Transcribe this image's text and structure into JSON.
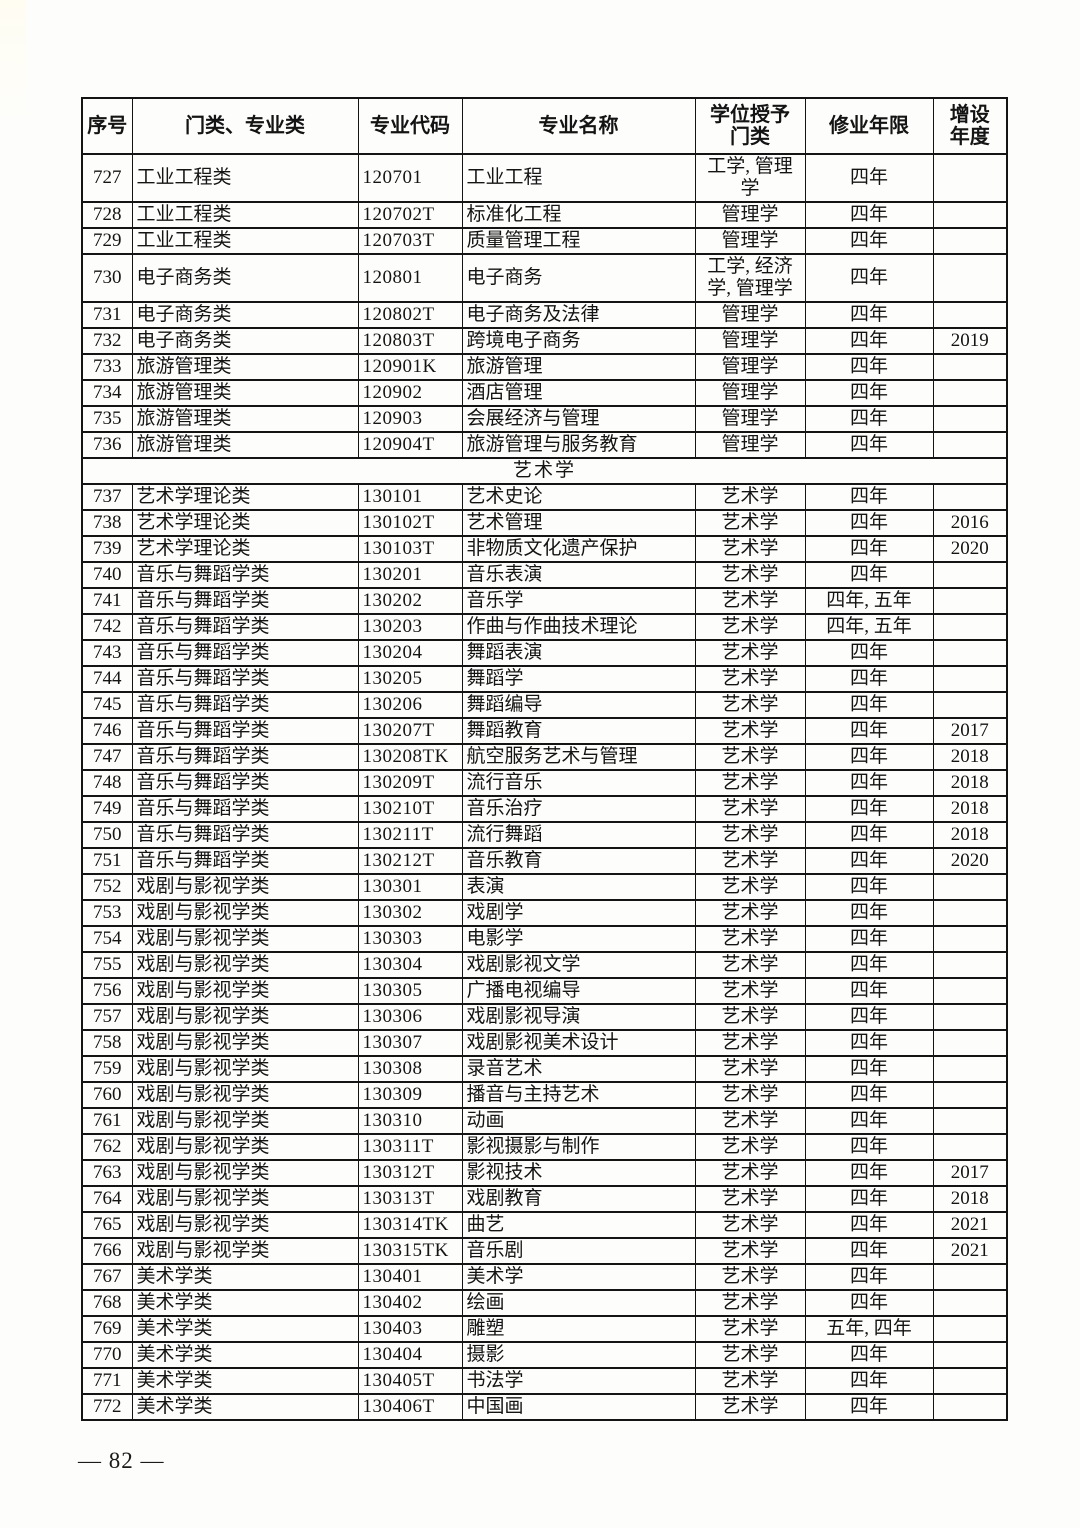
{
  "document": {
    "table": {
      "columns": [
        "序号",
        "门类、专业类",
        "专业代码",
        "专业名称",
        "学位授予\n门类",
        "修业年限",
        "增设\n年度"
      ],
      "rows": [
        {
          "cells": [
            "727",
            "工业工程类",
            "120701",
            "工业工程",
            "工学, 管理学",
            "四年",
            ""
          ]
        },
        {
          "cells": [
            "728",
            "工业工程类",
            "120702T",
            "标准化工程",
            "管理学",
            "四年",
            ""
          ]
        },
        {
          "cells": [
            "729",
            "工业工程类",
            "120703T",
            "质量管理工程",
            "管理学",
            "四年",
            ""
          ]
        },
        {
          "cells": [
            "730",
            "电子商务类",
            "120801",
            "电子商务",
            "工学, 经济学, 管理学",
            "四年",
            ""
          ]
        },
        {
          "cells": [
            "731",
            "电子商务类",
            "120802T",
            "电子商务及法律",
            "管理学",
            "四年",
            ""
          ]
        },
        {
          "cells": [
            "732",
            "电子商务类",
            "120803T",
            "跨境电子商务",
            "管理学",
            "四年",
            "2019"
          ]
        },
        {
          "cells": [
            "733",
            "旅游管理类",
            "120901K",
            "旅游管理",
            "管理学",
            "四年",
            ""
          ]
        },
        {
          "cells": [
            "734",
            "旅游管理类",
            "120902",
            "酒店管理",
            "管理学",
            "四年",
            ""
          ]
        },
        {
          "cells": [
            "735",
            "旅游管理类",
            "120903",
            "会展经济与管理",
            "管理学",
            "四年",
            ""
          ]
        },
        {
          "cells": [
            "736",
            "旅游管理类",
            "120904T",
            "旅游管理与服务教育",
            "管理学",
            "四年",
            ""
          ]
        },
        {
          "section": "艺术学"
        },
        {
          "cells": [
            "737",
            "艺术学理论类",
            "130101",
            "艺术史论",
            "艺术学",
            "四年",
            ""
          ]
        },
        {
          "cells": [
            "738",
            "艺术学理论类",
            "130102T",
            "艺术管理",
            "艺术学",
            "四年",
            "2016"
          ]
        },
        {
          "cells": [
            "739",
            "艺术学理论类",
            "130103T",
            "非物质文化遗产保护",
            "艺术学",
            "四年",
            "2020"
          ]
        },
        {
          "cells": [
            "740",
            "音乐与舞蹈学类",
            "130201",
            "音乐表演",
            "艺术学",
            "四年",
            ""
          ]
        },
        {
          "cells": [
            "741",
            "音乐与舞蹈学类",
            "130202",
            "音乐学",
            "艺术学",
            "四年, 五年",
            ""
          ]
        },
        {
          "cells": [
            "742",
            "音乐与舞蹈学类",
            "130203",
            "作曲与作曲技术理论",
            "艺术学",
            "四年, 五年",
            ""
          ]
        },
        {
          "cells": [
            "743",
            "音乐与舞蹈学类",
            "130204",
            "舞蹈表演",
            "艺术学",
            "四年",
            ""
          ]
        },
        {
          "cells": [
            "744",
            "音乐与舞蹈学类",
            "130205",
            "舞蹈学",
            "艺术学",
            "四年",
            ""
          ]
        },
        {
          "cells": [
            "745",
            "音乐与舞蹈学类",
            "130206",
            "舞蹈编导",
            "艺术学",
            "四年",
            ""
          ]
        },
        {
          "cells": [
            "746",
            "音乐与舞蹈学类",
            "130207T",
            "舞蹈教育",
            "艺术学",
            "四年",
            "2017"
          ]
        },
        {
          "cells": [
            "747",
            "音乐与舞蹈学类",
            "130208TK",
            "航空服务艺术与管理",
            "艺术学",
            "四年",
            "2018"
          ]
        },
        {
          "cells": [
            "748",
            "音乐与舞蹈学类",
            "130209T",
            "流行音乐",
            "艺术学",
            "四年",
            "2018"
          ]
        },
        {
          "cells": [
            "749",
            "音乐与舞蹈学类",
            "130210T",
            "音乐治疗",
            "艺术学",
            "四年",
            "2018"
          ]
        },
        {
          "cells": [
            "750",
            "音乐与舞蹈学类",
            "130211T",
            "流行舞蹈",
            "艺术学",
            "四年",
            "2018"
          ]
        },
        {
          "cells": [
            "751",
            "音乐与舞蹈学类",
            "130212T",
            "音乐教育",
            "艺术学",
            "四年",
            "2020"
          ]
        },
        {
          "cells": [
            "752",
            "戏剧与影视学类",
            "130301",
            "表演",
            "艺术学",
            "四年",
            ""
          ]
        },
        {
          "cells": [
            "753",
            "戏剧与影视学类",
            "130302",
            "戏剧学",
            "艺术学",
            "四年",
            ""
          ]
        },
        {
          "cells": [
            "754",
            "戏剧与影视学类",
            "130303",
            "电影学",
            "艺术学",
            "四年",
            ""
          ]
        },
        {
          "cells": [
            "755",
            "戏剧与影视学类",
            "130304",
            "戏剧影视文学",
            "艺术学",
            "四年",
            ""
          ]
        },
        {
          "cells": [
            "756",
            "戏剧与影视学类",
            "130305",
            "广播电视编导",
            "艺术学",
            "四年",
            ""
          ]
        },
        {
          "cells": [
            "757",
            "戏剧与影视学类",
            "130306",
            "戏剧影视导演",
            "艺术学",
            "四年",
            ""
          ]
        },
        {
          "cells": [
            "758",
            "戏剧与影视学类",
            "130307",
            "戏剧影视美术设计",
            "艺术学",
            "四年",
            ""
          ]
        },
        {
          "cells": [
            "759",
            "戏剧与影视学类",
            "130308",
            "录音艺术",
            "艺术学",
            "四年",
            ""
          ]
        },
        {
          "cells": [
            "760",
            "戏剧与影视学类",
            "130309",
            "播音与主持艺术",
            "艺术学",
            "四年",
            ""
          ]
        },
        {
          "cells": [
            "761",
            "戏剧与影视学类",
            "130310",
            "动画",
            "艺术学",
            "四年",
            ""
          ]
        },
        {
          "cells": [
            "762",
            "戏剧与影视学类",
            "130311T",
            "影视摄影与制作",
            "艺术学",
            "四年",
            ""
          ]
        },
        {
          "cells": [
            "763",
            "戏剧与影视学类",
            "130312T",
            "影视技术",
            "艺术学",
            "四年",
            "2017"
          ]
        },
        {
          "cells": [
            "764",
            "戏剧与影视学类",
            "130313T",
            "戏剧教育",
            "艺术学",
            "四年",
            "2018"
          ]
        },
        {
          "cells": [
            "765",
            "戏剧与影视学类",
            "130314TK",
            "曲艺",
            "艺术学",
            "四年",
            "2021"
          ]
        },
        {
          "cells": [
            "766",
            "戏剧与影视学类",
            "130315TK",
            "音乐剧",
            "艺术学",
            "四年",
            "2021"
          ]
        },
        {
          "cells": [
            "767",
            "美术学类",
            "130401",
            "美术学",
            "艺术学",
            "四年",
            ""
          ]
        },
        {
          "cells": [
            "768",
            "美术学类",
            "130402",
            "绘画",
            "艺术学",
            "四年",
            ""
          ]
        },
        {
          "cells": [
            "769",
            "美术学类",
            "130403",
            "雕塑",
            "艺术学",
            "五年, 四年",
            ""
          ]
        },
        {
          "cells": [
            "770",
            "美术学类",
            "130404",
            "摄影",
            "艺术学",
            "四年",
            ""
          ]
        },
        {
          "cells": [
            "771",
            "美术学类",
            "130405T",
            "书法学",
            "艺术学",
            "四年",
            ""
          ]
        },
        {
          "cells": [
            "772",
            "美术学类",
            "130406T",
            "中国画",
            "艺术学",
            "四年",
            ""
          ]
        }
      ]
    },
    "footer": {
      "page_number": "— 82 —"
    }
  }
}
